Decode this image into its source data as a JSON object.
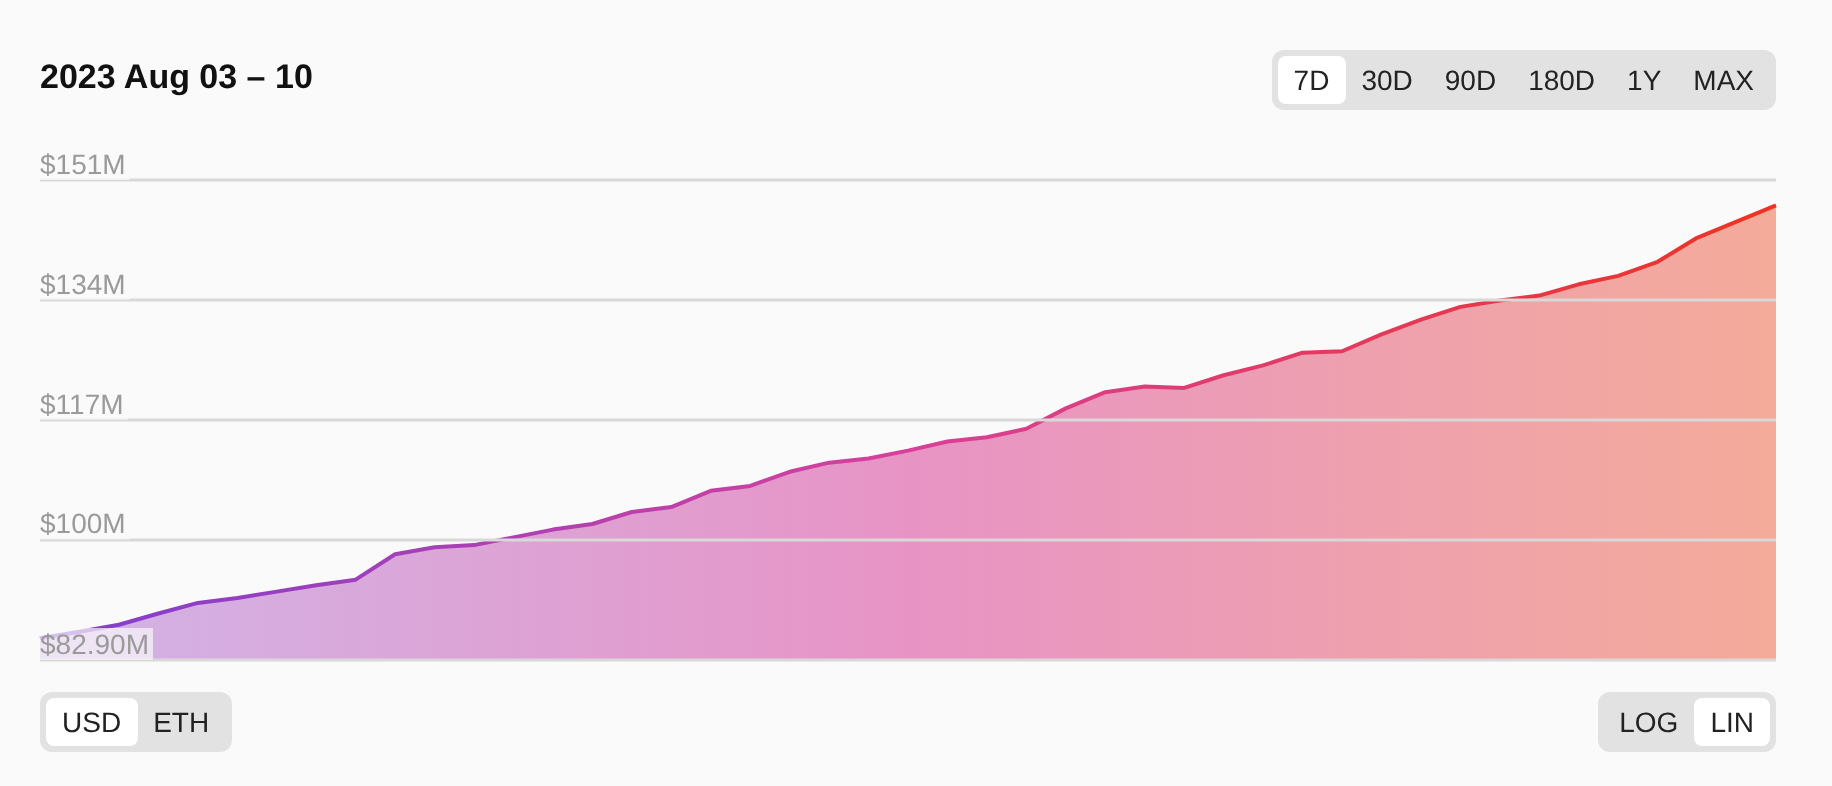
{
  "chart_data": {
    "type": "area",
    "title": "2023 Aug 03 – 10",
    "categories": [
      null,
      null,
      null,
      null,
      null,
      null,
      null,
      null,
      null,
      null,
      null,
      null,
      null,
      null,
      null,
      null,
      null,
      null,
      null,
      null,
      null,
      null,
      null,
      null,
      null,
      null,
      null,
      null,
      null,
      null,
      null,
      null,
      null,
      null,
      null,
      null,
      null,
      null,
      null,
      null,
      null,
      null,
      null,
      null,
      null
    ],
    "series": [
      {
        "color": "#d8409a",
        "values": [
          86.0,
          86.9,
          87.9,
          89.5,
          91.0,
          91.7,
          92.6,
          93.5,
          94.3,
          97.9,
          98.9,
          99.2,
          100.3,
          101.4,
          102.2,
          103.9,
          104.6,
          106.9,
          107.6,
          109.6,
          110.9,
          111.5,
          112.6,
          113.9,
          114.5,
          115.7,
          118.6,
          120.9,
          121.7,
          121.5,
          123.3,
          124.7,
          126.5,
          126.7,
          129.1,
          131.2,
          133.0,
          133.9,
          134.6,
          136.2,
          137.4,
          139.4,
          142.8,
          145.1,
          147.4
        ]
      }
    ],
    "ylim": [
      82.9,
      151
    ],
    "yticks": [
      {
        "value": 82.9,
        "label": "$82.90M"
      },
      {
        "value": 100,
        "label": "$100M"
      },
      {
        "value": 117,
        "label": "$117M"
      },
      {
        "value": 134,
        "label": "$134M"
      },
      {
        "value": 151,
        "label": "$151M"
      }
    ],
    "grid": "y",
    "marker": "none",
    "line_style": "solid",
    "annotations": [
      "7D",
      "30D",
      "90D",
      "180D",
      "1Y",
      "MAX",
      "USD",
      "ETH",
      "LOG",
      "LIN"
    ]
  }
}
